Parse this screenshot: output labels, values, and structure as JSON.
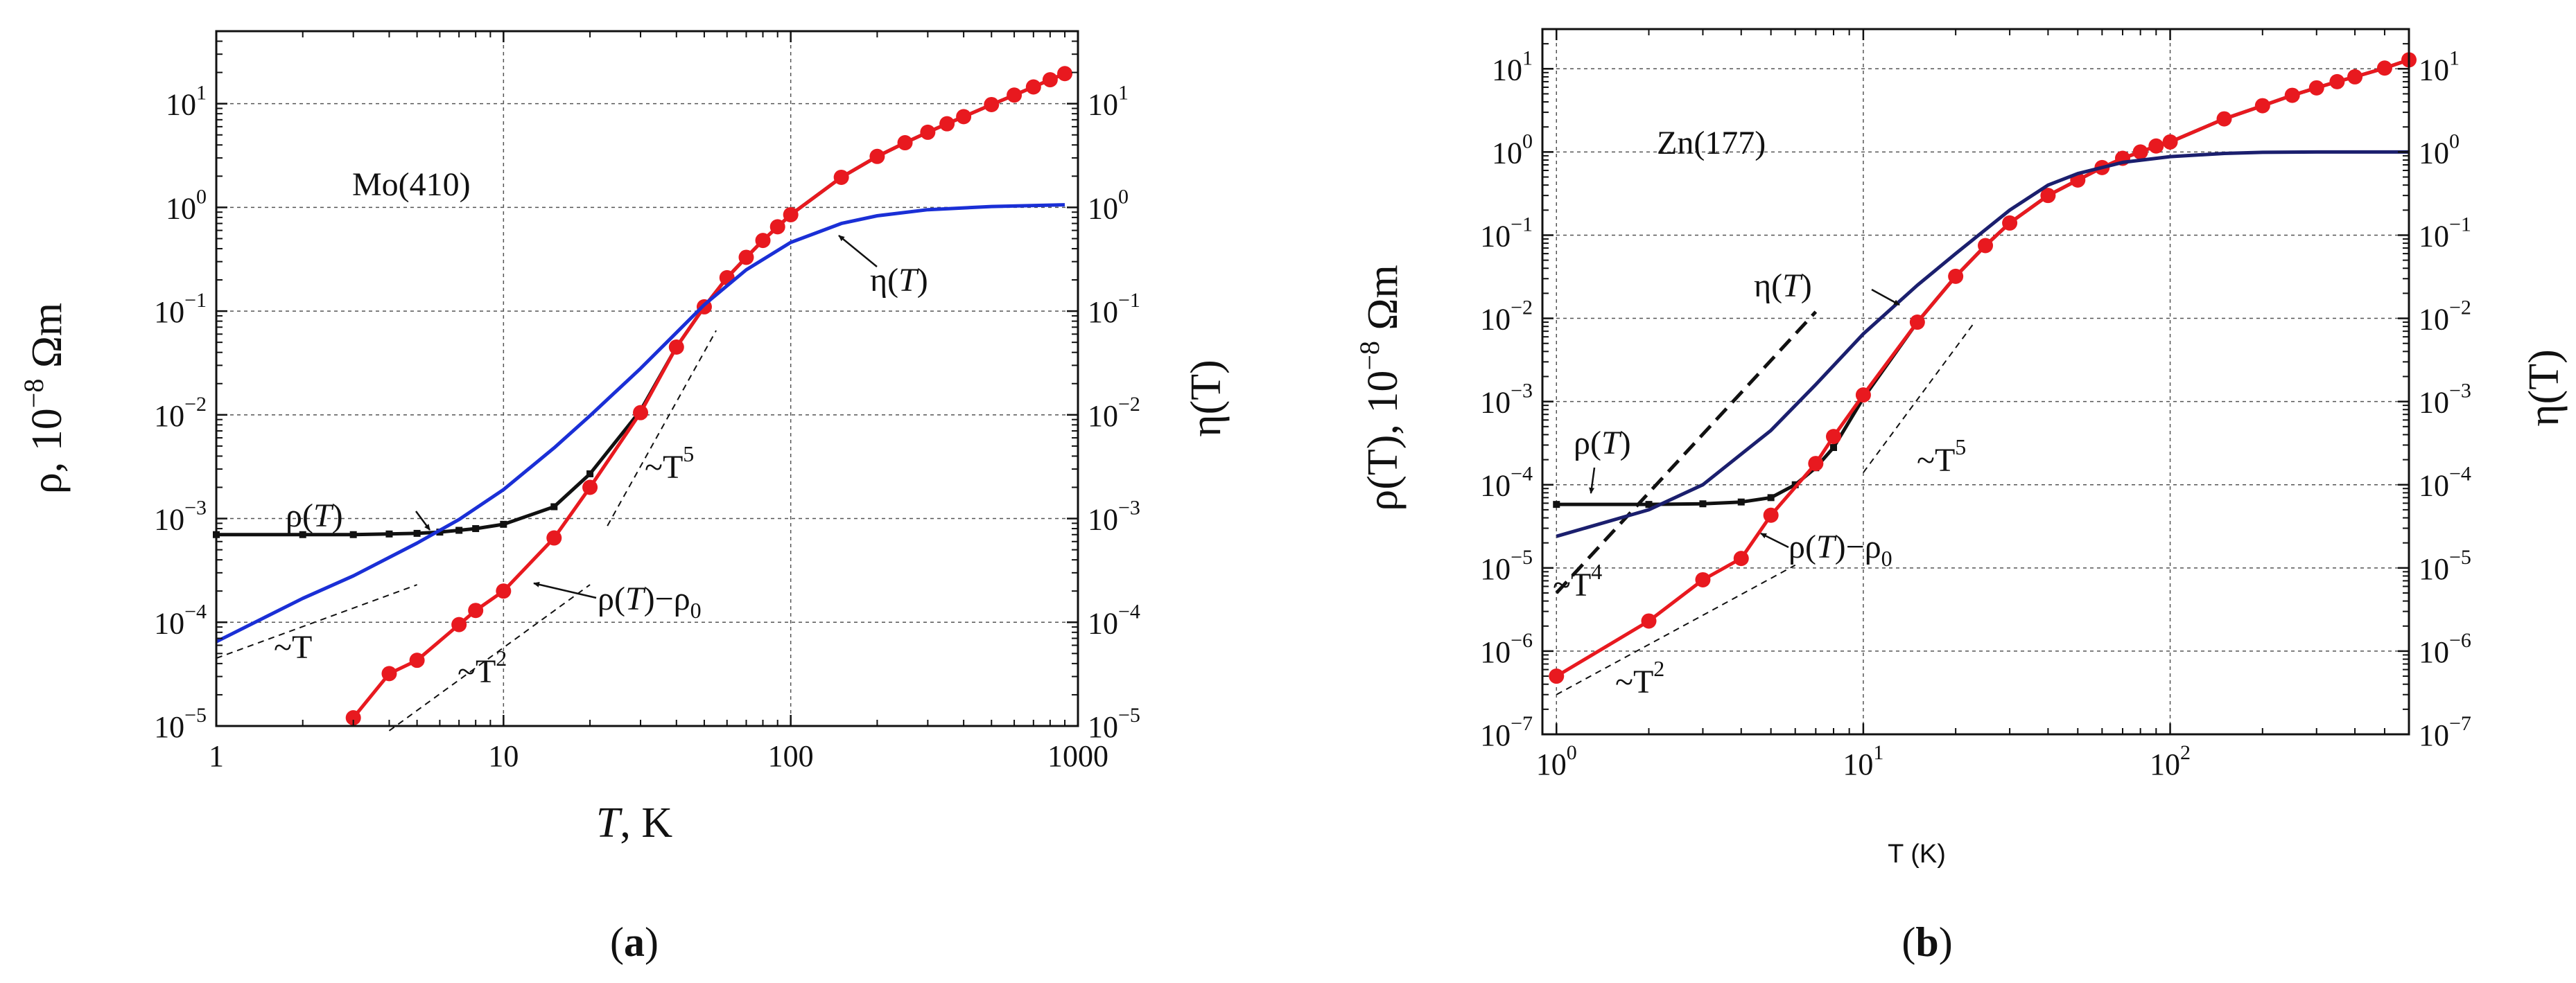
{
  "chart_data": [
    {
      "type": "line",
      "panel_label_text": "(",
      "panel_label_bold": "a",
      "panel_label_close": ")",
      "title": "Mo(410)",
      "xlabel_italic": "T",
      "xlabel_rest": ", K",
      "ylabel_left": "ρ, 10",
      "ylabel_left_exp": "−8",
      "ylabel_left_unit": " Ωm",
      "ylabel_right": "η(T)",
      "xscale": "log",
      "yscale": "log",
      "xlim": [
        1,
        1000
      ],
      "ylim": [
        1e-05,
        50
      ],
      "grid": true,
      "x_ticks": [
        1,
        10,
        100,
        1000
      ],
      "x_tick_labels": [
        "1",
        "10",
        "100",
        "1000"
      ],
      "y_ticks": [
        1e-05,
        0.0001,
        0.001,
        0.01,
        0.1,
        1,
        10
      ],
      "y_tick_base": "10",
      "y_tick_exps": [
        "−5",
        "−4",
        "−3",
        "−2",
        "−1",
        "0",
        "1"
      ],
      "series": [
        {
          "name": "ρ(T)",
          "color": "#111111",
          "marker": "square",
          "x": [
            1,
            2,
            3,
            4,
            5,
            6,
            7,
            8,
            10,
            15,
            20,
            30,
            40,
            50,
            60,
            70,
            80,
            90,
            100,
            150,
            200,
            250,
            300,
            350,
            400,
            500,
            600,
            700,
            800,
            900
          ],
          "y": [
            0.0007,
            0.0007,
            0.0007,
            0.00071,
            0.00072,
            0.00074,
            0.00077,
            0.0008,
            0.00088,
            0.0013,
            0.0027,
            0.011,
            0.045,
            0.11,
            0.21,
            0.33,
            0.48,
            0.65,
            0.85,
            1.95,
            3.1,
            4.2,
            5.3,
            6.4,
            7.5,
            9.8,
            12.1,
            14.5,
            17.0,
            19.5
          ]
        },
        {
          "name": "ρ(T)−ρ0",
          "color": "#e8191f",
          "marker": "circle",
          "x": [
            3,
            4,
            5,
            7,
            8,
            10,
            15,
            20,
            30,
            40,
            50,
            60,
            70,
            80,
            90,
            100,
            150,
            200,
            250,
            300,
            350,
            400,
            500,
            600,
            700,
            800,
            900
          ],
          "y": [
            1.2e-05,
            3.2e-05,
            4.3e-05,
            9.5e-05,
            0.00013,
            0.0002,
            0.00065,
            0.002,
            0.0105,
            0.045,
            0.11,
            0.21,
            0.33,
            0.48,
            0.65,
            0.85,
            1.95,
            3.1,
            4.2,
            5.3,
            6.4,
            7.5,
            9.8,
            12.1,
            14.5,
            17.0,
            19.5
          ]
        },
        {
          "name": "η(T)",
          "color": "#1a2fd6",
          "marker": "none",
          "x": [
            1,
            2,
            3,
            5,
            7,
            10,
            15,
            20,
            30,
            40,
            50,
            70,
            100,
            150,
            200,
            300,
            500,
            900
          ],
          "y": [
            6.5e-05,
            0.00017,
            0.00028,
            0.00058,
            0.00098,
            0.0019,
            0.0048,
            0.0098,
            0.028,
            0.062,
            0.115,
            0.25,
            0.46,
            0.7,
            0.83,
            0.95,
            1.02,
            1.06
          ]
        }
      ],
      "guides": [
        {
          "label": "~T",
          "power": 1,
          "x": [
            1,
            5
          ],
          "y": [
            4.5e-05,
            0.00023
          ]
        },
        {
          "label": "~T",
          "sup": "2",
          "power": 2,
          "x": [
            4,
            20
          ],
          "y": [
            9e-06,
            0.00023
          ]
        },
        {
          "label": "~T",
          "sup": "5",
          "power": 5,
          "x": [
            23,
            55
          ],
          "y": [
            0.00085,
            0.065
          ]
        }
      ],
      "annotations": [
        {
          "text": "ρ(",
          "italic": "T",
          "rest": ")",
          "target_series": "ρ(T)"
        },
        {
          "text": "ρ(",
          "italic": "T",
          "rest": ")−ρ",
          "sub": "0",
          "target_series": "ρ(T)−ρ0"
        },
        {
          "text": "η(",
          "italic": "T",
          "rest": ")",
          "target_series": "η(T)"
        }
      ]
    },
    {
      "type": "line",
      "panel_label_text": "(",
      "panel_label_bold": "b",
      "panel_label_close": ")",
      "title": "Zn(177)",
      "xlabel": "T (K)",
      "ylabel_left": "ρ(T), 10",
      "ylabel_left_exp": "−8",
      "ylabel_left_unit": " Ωm",
      "ylabel_right": "η(T)",
      "xscale": "log",
      "yscale": "log",
      "xlim": [
        0.9,
        600
      ],
      "ylim": [
        1e-07,
        30
      ],
      "grid": true,
      "x_ticks": [
        1,
        10,
        100
      ],
      "x_tick_base": "10",
      "x_tick_exps": [
        "0",
        "1",
        "2"
      ],
      "y_ticks": [
        1e-07,
        1e-06,
        1e-05,
        0.0001,
        0.001,
        0.01,
        0.1,
        1,
        10
      ],
      "y_tick_base": "10",
      "y_tick_exps": [
        "−7",
        "−6",
        "−5",
        "−4",
        "−3",
        "−2",
        "−1",
        "0",
        "1"
      ],
      "series": [
        {
          "name": "ρ(T)",
          "color": "#111111",
          "marker": "square",
          "x": [
            1,
            2,
            3,
            4,
            5,
            6,
            7,
            8,
            10,
            15,
            20,
            25,
            30,
            40,
            50,
            60,
            70,
            80,
            90,
            100,
            150,
            200,
            250,
            300,
            350,
            400,
            500,
            600
          ],
          "y": [
            5.8e-05,
            5.8e-05,
            5.9e-05,
            6.2e-05,
            7e-05,
            0.0001,
            0.00016,
            0.00028,
            0.0011,
            0.009,
            0.032,
            0.075,
            0.14,
            0.3,
            0.46,
            0.65,
            0.84,
            1.0,
            1.18,
            1.32,
            2.5,
            3.6,
            4.8,
            5.9,
            7.0,
            8.0,
            10.2,
            12.8
          ]
        },
        {
          "name": "ρ(T)−ρ0",
          "color": "#e8191f",
          "marker": "circle",
          "x": [
            1,
            2,
            3,
            4,
            5,
            7,
            8,
            10,
            15,
            20,
            25,
            30,
            40,
            50,
            60,
            70,
            80,
            90,
            100,
            150,
            200,
            250,
            300,
            350,
            400,
            500,
            600
          ],
          "y": [
            5e-07,
            2.3e-06,
            7.2e-06,
            1.3e-05,
            4.3e-05,
            0.00018,
            0.00038,
            0.0012,
            0.009,
            0.032,
            0.075,
            0.14,
            0.3,
            0.46,
            0.65,
            0.84,
            1.0,
            1.18,
            1.32,
            2.5,
            3.6,
            4.8,
            5.9,
            7.0,
            8.0,
            10.2,
            12.8
          ]
        },
        {
          "name": "η(T)",
          "color": "#1b1f6e",
          "marker": "none",
          "x": [
            1,
            2,
            3,
            5,
            7,
            10,
            15,
            20,
            30,
            40,
            50,
            70,
            100,
            150,
            200,
            300,
            600
          ],
          "y": [
            2.4e-05,
            5e-05,
            0.0001,
            0.00045,
            0.0016,
            0.0065,
            0.025,
            0.06,
            0.2,
            0.4,
            0.55,
            0.75,
            0.88,
            0.96,
            0.99,
            1.0,
            1.0
          ]
        }
      ],
      "guides": [
        {
          "label": "~T",
          "sup": "2",
          "power": 2,
          "x": [
            1,
            6
          ],
          "y": [
            3e-07,
            1.08e-05
          ],
          "style": "thin"
        },
        {
          "label": "~T",
          "sup": "4",
          "power": 4,
          "x": [
            1,
            7
          ],
          "y": [
            5e-06,
            0.012
          ],
          "style": "bold"
        },
        {
          "label": "~T",
          "sup": "5",
          "power": 5,
          "x": [
            10,
            23
          ],
          "y": [
            0.00014,
            0.0089
          ],
          "style": "thin"
        }
      ],
      "annotations": [
        {
          "text": "η(",
          "italic": "T",
          "rest": ")",
          "target_series": "η(T)"
        },
        {
          "text": "ρ(",
          "italic": "T",
          "rest": ")",
          "target_series": "ρ(T)"
        },
        {
          "text": "ρ(",
          "italic": "T",
          "rest": ")−ρ",
          "sub": "0",
          "target_series": "ρ(T)−ρ0"
        }
      ]
    }
  ]
}
